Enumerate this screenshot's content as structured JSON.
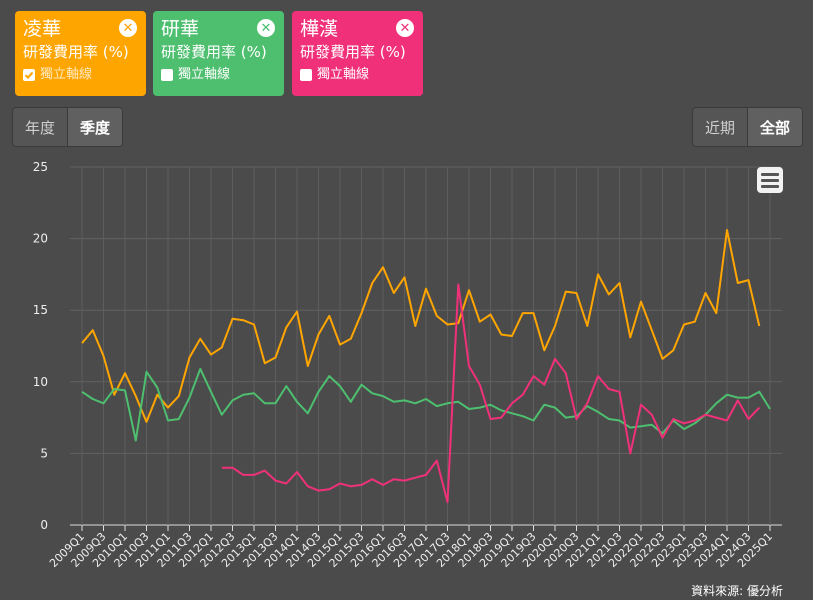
{
  "companies": [
    {
      "name": "凌華",
      "metric": "研發費用率 (%)",
      "option": "獨立軸線",
      "checked": true,
      "color": "#ffa500"
    },
    {
      "name": "研華",
      "metric": "研發費用率 (%)",
      "option": "獨立軸線",
      "checked": false,
      "color": "#4dbf6f"
    },
    {
      "name": "樺漢",
      "metric": "研發費用率 (%)",
      "option": "獨立軸線",
      "checked": false,
      "color": "#f0317a"
    }
  ],
  "period_tabs": {
    "year": "年度",
    "quarter": "季度"
  },
  "range_tabs": {
    "recent": "近期",
    "all": "全部"
  },
  "source": "資料來源: 優分析",
  "chart_data": {
    "type": "line",
    "title": "",
    "ylim": [
      0,
      25
    ],
    "yticks": [
      0,
      5,
      10,
      15,
      20,
      25
    ],
    "grid": true,
    "x_tick_labels": [
      "2009Q1",
      "2009Q3",
      "2010Q1",
      "2010Q3",
      "2011Q1",
      "2011Q3",
      "2012Q1",
      "2012Q3",
      "2013Q1",
      "2013Q3",
      "2014Q1",
      "2014Q3",
      "2015Q1",
      "2015Q3",
      "2016Q1",
      "2016Q3",
      "2017Q1",
      "2017Q3",
      "2018Q1",
      "2018Q3",
      "2019Q1",
      "2019Q3",
      "2020Q1",
      "2020Q3",
      "2021Q1",
      "2021Q3",
      "2022Q1",
      "2022Q3",
      "2023Q1",
      "2023Q3",
      "2024Q1",
      "2024Q3",
      "2025Q1"
    ],
    "series": [
      {
        "name": "凌華",
        "color": "#ffa500",
        "start": "2009Q1",
        "values": [
          12.7,
          13.6,
          11.8,
          9.1,
          10.6,
          9.0,
          7.2,
          9.1,
          8.2,
          9.0,
          11.7,
          13.0,
          11.9,
          12.4,
          14.4,
          14.3,
          14.0,
          11.3,
          11.7,
          13.8,
          14.9,
          11.1,
          13.3,
          14.6,
          12.6,
          13.0,
          14.8,
          16.9,
          18.0,
          16.2,
          17.3,
          13.9,
          16.5,
          14.6,
          14.0,
          14.1,
          16.4,
          14.2,
          14.7,
          13.3,
          13.2,
          14.8,
          14.8,
          12.2,
          13.9,
          16.3,
          16.2,
          13.9,
          17.5,
          16.1,
          16.9,
          13.1,
          15.6,
          13.6,
          11.6,
          12.2,
          14.0,
          14.2,
          16.2,
          14.8,
          20.6,
          16.9,
          17.1,
          13.9
        ]
      },
      {
        "name": "研華",
        "color": "#4dbf6f",
        "start": "2009Q1",
        "values": [
          9.3,
          8.8,
          8.5,
          9.5,
          9.4,
          5.9,
          10.7,
          9.6,
          7.3,
          7.4,
          8.9,
          10.9,
          9.3,
          7.7,
          8.7,
          9.1,
          9.2,
          8.5,
          8.5,
          9.7,
          8.6,
          7.8,
          9.3,
          10.4,
          9.7,
          8.6,
          9.8,
          9.2,
          9.0,
          8.6,
          8.7,
          8.5,
          8.8,
          8.3,
          8.5,
          8.6,
          8.1,
          8.2,
          8.4,
          8.0,
          7.8,
          7.6,
          7.3,
          8.4,
          8.2,
          7.5,
          7.6,
          8.3,
          7.9,
          7.4,
          7.3,
          6.8,
          6.9,
          7.0,
          6.4,
          7.3,
          6.7,
          7.1,
          7.7,
          8.5,
          9.1,
          8.9,
          8.9,
          9.3,
          8.1
        ]
      },
      {
        "name": "樺漢",
        "color": "#f0317a",
        "start": "2012Q2",
        "values": [
          4.0,
          4.0,
          3.5,
          3.5,
          3.8,
          3.1,
          2.9,
          3.7,
          2.7,
          2.4,
          2.5,
          2.9,
          2.7,
          2.8,
          3.2,
          2.8,
          3.2,
          3.1,
          3.3,
          3.5,
          4.5,
          1.6,
          16.8,
          11.1,
          9.8,
          7.4,
          7.5,
          8.5,
          9.1,
          10.4,
          9.8,
          11.6,
          10.6,
          7.4,
          8.5,
          10.4,
          9.5,
          9.3,
          5.0,
          8.4,
          7.7,
          6.1,
          7.4,
          7.1,
          7.3,
          7.7,
          7.5,
          7.3,
          8.7,
          7.4,
          8.2
        ]
      }
    ]
  }
}
